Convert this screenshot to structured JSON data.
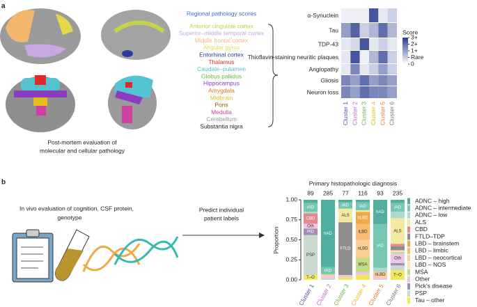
{
  "panel_a": {
    "label": "a",
    "caption": [
      "Post-mortem evaluation of",
      "molecular and cellular pathology"
    ],
    "regions_title": "Regional pathology scores",
    "regions_title_color": "#3a6fc4",
    "regions": [
      {
        "name": "Anterior cingulate cortex",
        "color": "#c3d24a"
      },
      {
        "name": "Superior–middle temporal cortex",
        "color": "#c7a8e2"
      },
      {
        "name": "Middle frontal cortex",
        "color": "#f3b66e"
      },
      {
        "name": "Angular gyrus",
        "color": "#e3d84a"
      },
      {
        "name": "Entorhinal cortex",
        "color": "#2b3c9e"
      },
      {
        "name": "Thalamus",
        "color": "#e02a2a"
      },
      {
        "name": "Caudate–putamen",
        "color": "#52c3cf"
      },
      {
        "name": "Globus pallidus",
        "color": "#69b83c"
      },
      {
        "name": "Hippocampus",
        "color": "#8a3cc0"
      },
      {
        "name": "Amygdala",
        "color": "#e07a20"
      },
      {
        "name": "Midbrain",
        "color": "#e0bf1a"
      },
      {
        "name": "Pons",
        "color": "#8a5a1a"
      },
      {
        "name": "Medulla",
        "color": "#d040a0"
      },
      {
        "name": "Cerebellum",
        "color": "#999999"
      },
      {
        "name": "Substantia nigra",
        "color": "#222222"
      }
    ]
  },
  "panel_b": {
    "label": "b",
    "input_text": [
      "In vivo evaluation of cognition, CSF protein,",
      "genotype"
    ],
    "arrow_text": [
      "Predict individual",
      "patient labels"
    ]
  },
  "chart_data": [
    {
      "type": "heatmap",
      "rows": [
        "α-Synuclein",
        "Tau",
        "TDP-43",
        "Thioflavin-staining neuritic plaques",
        "Angiopathy",
        "Gliosis",
        "Neuron loss"
      ],
      "columns": [
        "Cluster 1",
        "Cluster 2",
        "Cluster 3",
        "Cluster 4",
        "Cluster 5",
        "Cluster 6"
      ],
      "column_colors": [
        "#5b4fa8",
        "#c06bc1",
        "#6fb04a",
        "#e6b820",
        "#e0812f",
        "#777777"
      ],
      "values": [
        [
          0.3,
          0.3,
          0.3,
          3.5,
          0.5,
          1
        ],
        [
          2,
          3.2,
          1,
          1.5,
          3,
          1.5
        ],
        [
          0.5,
          0.8,
          3.5,
          0.5,
          1,
          0.5
        ],
        [
          0.5,
          3.5,
          0.3,
          1.5,
          3,
          1
        ],
        [
          0.5,
          2.5,
          0.5,
          1,
          2,
          1
        ],
        [
          2.5,
          2,
          3,
          2,
          2.5,
          2
        ],
        [
          2.5,
          2,
          3,
          2.5,
          2.5,
          2
        ]
      ],
      "color": "#2b3d8f",
      "colorbar_title": "Score",
      "clim": [
        0,
        4
      ],
      "colorbar_ticks": [
        {
          "value": 4,
          "label": "3+"
        },
        {
          "value": 3,
          "label": "2+"
        },
        {
          "value": 2,
          "label": "1+"
        },
        {
          "value": 1,
          "label": "Rare"
        },
        0
      ]
    },
    {
      "type": "stacked_bar",
      "title": "Primary histopathologic diagnosis",
      "ylabel": "Proportion",
      "categories": [
        "Cluster 1",
        "Cluster 2",
        "Cluster 3",
        "Cluster 4",
        "Cluster 5",
        "Cluster 6"
      ],
      "category_colors": [
        "#5b4fa8",
        "#c06bc1",
        "#6fb04a",
        "#e6b820",
        "#e0812f",
        "#777777"
      ],
      "counts": [
        89,
        285,
        77,
        116,
        93,
        235
      ],
      "ylim": [
        0,
        1
      ],
      "yticks": [
        {
          "value": 0,
          "label": "0.00"
        },
        {
          "value": 0.25,
          "label": "0.25"
        },
        {
          "value": 0.5,
          "label": "0.50"
        },
        {
          "value": 0.75,
          "label": "0.75"
        },
        {
          "value": 1,
          "label": "1.00"
        }
      ],
      "series": [
        {
          "name": "ADNC – high",
          "color": "#4fae9c",
          "values": [
            0.04,
            0.84,
            0.03,
            0.03,
            0.3,
            0.04
          ],
          "segment_labels": [
            null,
            "hAD",
            null,
            null,
            "hAD",
            null
          ]
        },
        {
          "name": "ADNC – intermediate",
          "color": "#76c6b3",
          "values": [
            0.11,
            0.09,
            0.08,
            0.1,
            0.55,
            0.11
          ],
          "segment_labels": [
            "iAD",
            "iAD",
            "iAD",
            "iAD",
            "iAD",
            "iAD"
          ]
        },
        {
          "name": "ADNC – low",
          "color": "#a9dccd",
          "values": [
            0.02,
            0,
            0,
            0,
            0.05,
            0.08
          ],
          "segment_labels": [
            null,
            null,
            null,
            null,
            null,
            null
          ]
        },
        {
          "name": "ALS",
          "color": "#f3ea9e",
          "values": [
            0,
            0,
            0.17,
            0.02,
            0,
            0.32
          ],
          "segment_labels": [
            null,
            null,
            "ALS",
            null,
            null,
            "ALS"
          ]
        },
        {
          "name": "CBD",
          "color": "#e8878a",
          "values": [
            0.13,
            0,
            0,
            0,
            0,
            0.03
          ],
          "segment_labels": [
            "CBD",
            null,
            null,
            null,
            null,
            null
          ]
        },
        {
          "name": "FTLD–TDP",
          "color": "#8e8e8e",
          "values": [
            0,
            0,
            0.66,
            0,
            0,
            0.05
          ],
          "segment_labels": [
            null,
            null,
            "FTLD",
            null,
            null,
            null
          ]
        },
        {
          "name": "LBD – brainstem",
          "color": "#f2a845",
          "values": [
            0,
            0,
            0,
            0.15,
            0,
            0
          ],
          "segment_labels": [
            null,
            null,
            null,
            "bLBD",
            null,
            null
          ]
        },
        {
          "name": "LBD – limbic",
          "color": "#f6bd72",
          "values": [
            0,
            0,
            0,
            0.2,
            0,
            0
          ],
          "segment_labels": [
            null,
            null,
            null,
            "lLBD",
            null,
            null
          ]
        },
        {
          "name": "LBD – neocortical",
          "color": "#f8cf95",
          "values": [
            0,
            0.02,
            0,
            0.22,
            0.07,
            0
          ],
          "segment_labels": [
            null,
            null,
            null,
            "nLBD",
            "nLBD",
            null
          ]
        },
        {
          "name": "LBD – NOS",
          "color": "#fbe2bd",
          "values": [
            0,
            0,
            0,
            0,
            0,
            0.02
          ],
          "segment_labels": [
            null,
            null,
            null,
            null,
            null,
            null
          ]
        },
        {
          "name": "MSA",
          "color": "#c5dc86",
          "values": [
            0,
            0,
            0,
            0.18,
            0,
            0.02
          ],
          "segment_labels": [
            null,
            null,
            null,
            "MSA",
            null,
            null
          ]
        },
        {
          "name": "Other",
          "color": "#ecc8e3",
          "values": [
            0.06,
            0.03,
            0.03,
            0.04,
            0.03,
            0.12
          ],
          "segment_labels": [
            "Oth",
            null,
            null,
            null,
            null,
            "Oth"
          ]
        },
        {
          "name": "Pick's disease",
          "color": "#a58ab8",
          "values": [
            0.08,
            0,
            0,
            0,
            0,
            0.03
          ],
          "segment_labels": [
            "PiD",
            null,
            null,
            null,
            null,
            null
          ]
        },
        {
          "name": "PSP",
          "color": "#c9d9cf",
          "values": [
            0.5,
            0.02,
            0,
            0,
            0,
            0.06
          ],
          "segment_labels": [
            "PSP",
            null,
            null,
            null,
            null,
            null
          ]
        },
        {
          "name": "Tau – other",
          "color": "#f4e65a",
          "values": [
            0.06,
            0,
            0.03,
            0.06,
            0,
            0.12
          ],
          "segment_labels": [
            "T–O",
            null,
            null,
            null,
            null,
            "T–O"
          ]
        }
      ]
    }
  ]
}
